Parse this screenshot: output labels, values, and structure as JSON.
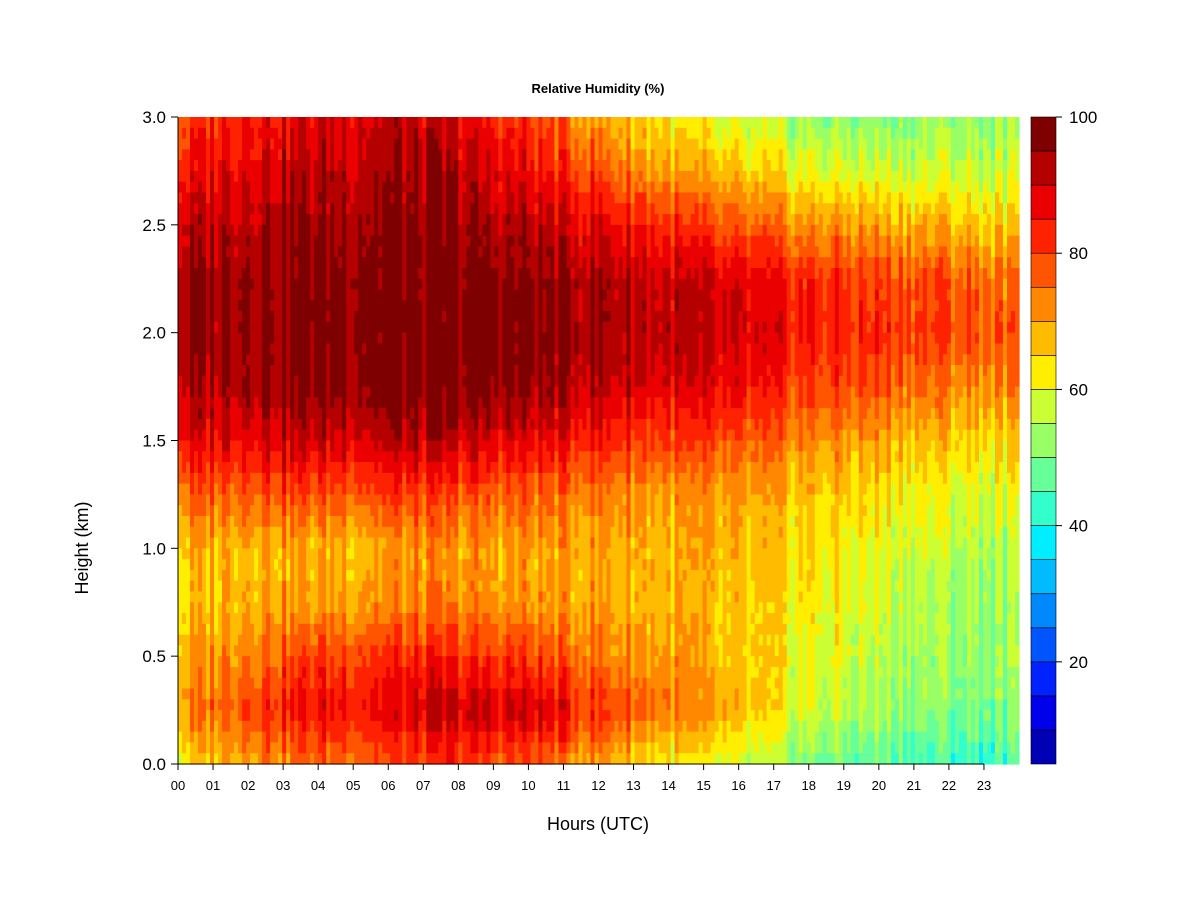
{
  "chart_data": {
    "type": "heatmap",
    "title": "Relative Humidity (%)",
    "xlabel": "Hours (UTC)",
    "ylabel": "Height (km)",
    "x_range": [
      0,
      24
    ],
    "ylim": [
      0.0,
      3.0
    ],
    "x_ticks": [
      "00",
      "01",
      "02",
      "03",
      "04",
      "05",
      "06",
      "07",
      "08",
      "09",
      "10",
      "11",
      "12",
      "13",
      "14",
      "15",
      "16",
      "17",
      "18",
      "19",
      "20",
      "21",
      "22",
      "23"
    ],
    "y_ticks": [
      "0.0",
      "0.5",
      "1.0",
      "1.5",
      "2.0",
      "2.5",
      "3.0"
    ],
    "colorbar": {
      "min": 5,
      "max": 100,
      "ticks": [
        "20",
        "40",
        "60",
        "80",
        "100"
      ],
      "levels": [
        5,
        10,
        15,
        20,
        25,
        30,
        35,
        40,
        45,
        50,
        55,
        60,
        65,
        70,
        75,
        80,
        85,
        90,
        95,
        100
      ],
      "colors": [
        "#00007F",
        "#0000B5",
        "#0000EA",
        "#0022FF",
        "#0055FF",
        "#0088FF",
        "#00BBFF",
        "#00EEFF",
        "#33FFCC",
        "#66FF99",
        "#99FF66",
        "#CCFF33",
        "#FFEE00",
        "#FFBB00",
        "#FF8800",
        "#FF5500",
        "#FF2200",
        "#EA0000",
        "#B50000",
        "#7F0000"
      ]
    },
    "heights_km": [
      0.0,
      0.25,
      0.5,
      0.75,
      1.0,
      1.25,
      1.5,
      1.75,
      2.0,
      2.25,
      2.5,
      2.75,
      3.0
    ],
    "hours": [
      0,
      2,
      4,
      6,
      8,
      10,
      12,
      14,
      16,
      18,
      20,
      22,
      24
    ],
    "rh_grid": [
      [
        62,
        72,
        76,
        78,
        80,
        78,
        70,
        62,
        56,
        50,
        46,
        44,
        44
      ],
      [
        70,
        82,
        86,
        88,
        90,
        90,
        82,
        74,
        66,
        58,
        54,
        50,
        50
      ],
      [
        68,
        76,
        80,
        82,
        82,
        80,
        74,
        70,
        64,
        60,
        56,
        52,
        52
      ],
      [
        64,
        70,
        70,
        72,
        72,
        70,
        70,
        68,
        64,
        62,
        58,
        54,
        52
      ],
      [
        66,
        70,
        68,
        70,
        70,
        70,
        70,
        68,
        66,
        64,
        60,
        56,
        54
      ],
      [
        74,
        80,
        78,
        80,
        78,
        76,
        74,
        70,
        68,
        66,
        64,
        60,
        58
      ],
      [
        86,
        90,
        90,
        92,
        90,
        88,
        84,
        80,
        76,
        72,
        70,
        66,
        64
      ],
      [
        92,
        96,
        97,
        98,
        98,
        96,
        92,
        88,
        84,
        80,
        78,
        74,
        72
      ],
      [
        94,
        97,
        98,
        98,
        98,
        97,
        95,
        92,
        88,
        84,
        82,
        80,
        76
      ],
      [
        94,
        97,
        98,
        98,
        97,
        96,
        94,
        90,
        86,
        82,
        80,
        78,
        74
      ],
      [
        90,
        94,
        95,
        96,
        95,
        92,
        88,
        82,
        76,
        72,
        70,
        68,
        64
      ],
      [
        84,
        90,
        92,
        94,
        92,
        86,
        78,
        70,
        64,
        60,
        58,
        58,
        56
      ],
      [
        78,
        86,
        88,
        92,
        88,
        80,
        70,
        62,
        56,
        52,
        50,
        52,
        52
      ]
    ]
  }
}
